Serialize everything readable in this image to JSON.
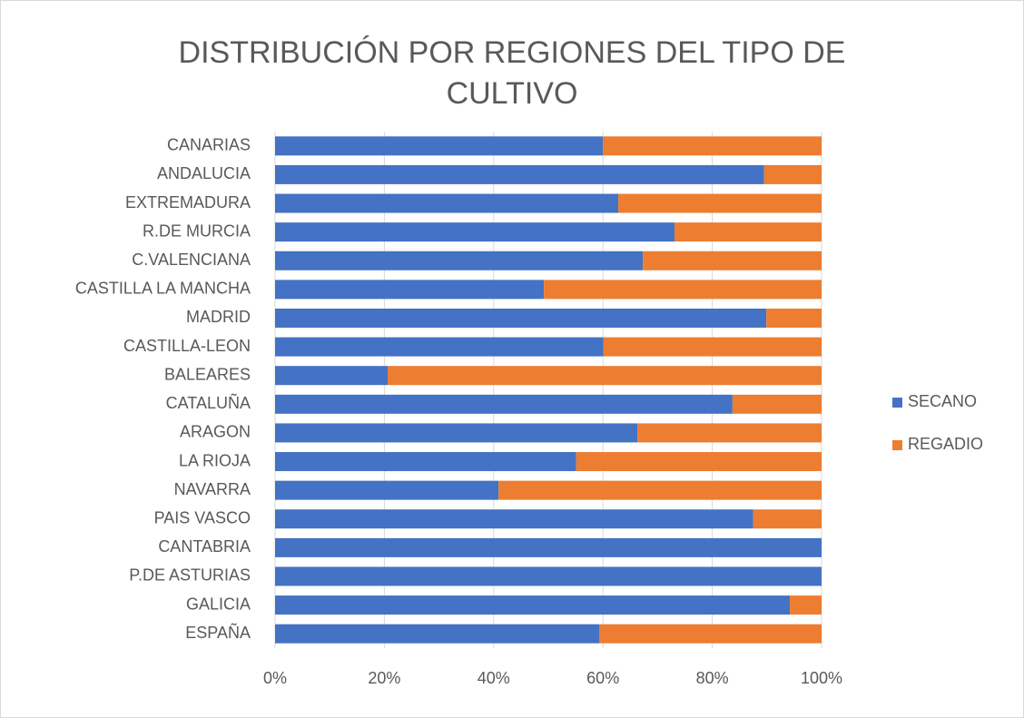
{
  "chart_data": {
    "type": "stacked_barh",
    "title": "DISTRIBUCIÓN POR REGIONES DEL TIPO DE CULTIVO",
    "categories": [
      "CANARIAS",
      "ANDALUCIA",
      "EXTREMADURA",
      "R.DE MURCIA",
      "C.VALENCIANA",
      "CASTILLA LA MANCHA",
      "MADRID",
      "CASTILLA-LEON",
      "BALEARES",
      "CATALUÑA",
      "ARAGON",
      "LA RIOJA",
      "NAVARRA",
      "PAIS VASCO",
      "CANTABRIA",
      "P.DE ASTURIAS",
      "GALICIA",
      "ESPAÑA"
    ],
    "series": [
      {
        "name": "SECANO",
        "color": "#4472c4",
        "values": [
          60,
          89.5,
          62.8,
          73.1,
          67.3,
          49.2,
          89.9,
          60.1,
          20.6,
          83.7,
          66.3,
          55.1,
          40.9,
          87.5,
          100,
          100,
          94.2,
          59.3
        ]
      },
      {
        "name": "REGADIO",
        "color": "#ed7d31",
        "values": [
          40,
          10.5,
          37.2,
          26.9,
          32.7,
          50.8,
          10.1,
          39.9,
          79.4,
          16.3,
          33.7,
          44.9,
          59.1,
          12.5,
          0,
          0,
          5.8,
          40.7
        ]
      }
    ],
    "xlim": [
      0,
      100
    ],
    "xticks": [
      {
        "value": 0,
        "label": "0%"
      },
      {
        "value": 20,
        "label": "20%"
      },
      {
        "value": 40,
        "label": "40%"
      },
      {
        "value": 60,
        "label": "60%"
      },
      {
        "value": 80,
        "label": "80%"
      },
      {
        "value": 100,
        "label": "100%"
      }
    ],
    "grid": true,
    "legend": "right"
  }
}
